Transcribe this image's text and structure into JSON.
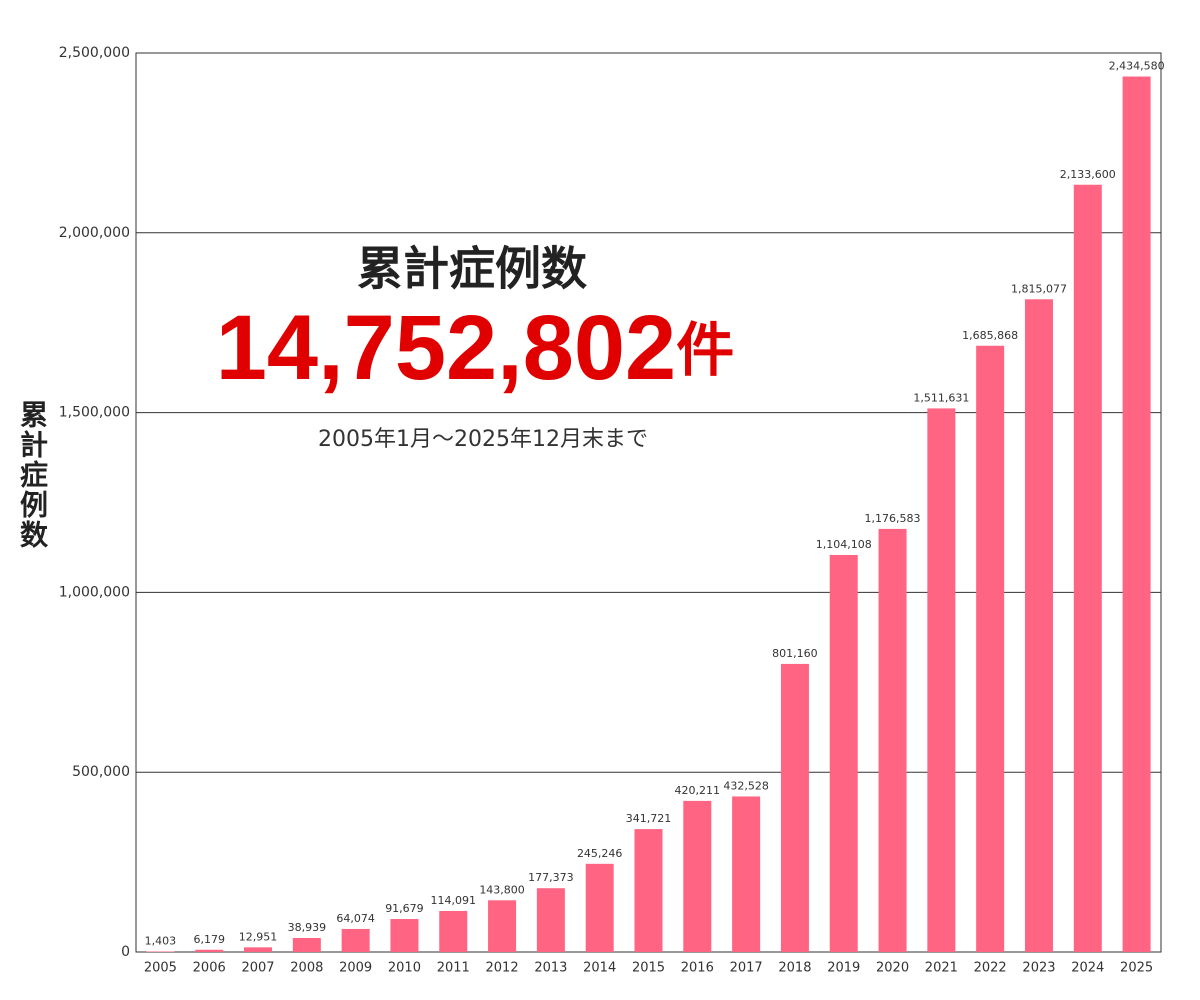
{
  "chart_data": {
    "type": "bar",
    "title": "累計症例数",
    "total": "14,752,802",
    "total_unit": "件",
    "subtitle": "2005年1月～2025年12月末まで",
    "y_label": "累計症例数",
    "categories": [
      "2005",
      "2006",
      "2007",
      "2008",
      "2009",
      "2010",
      "2011",
      "2012",
      "2013",
      "2014",
      "2015",
      "2016",
      "2017",
      "2018",
      "2019",
      "2020",
      "2021",
      "2022",
      "2023",
      "2024",
      "2025"
    ],
    "values": [
      1403,
      6179,
      12951,
      38939,
      64074,
      91679,
      114091,
      143800,
      177373,
      245246,
      341721,
      420211,
      432528,
      801160,
      1104108,
      1176583,
      1511631,
      1685868,
      1815077,
      2133600,
      2434580
    ],
    "value_labels": [
      "1,403",
      "6,179",
      "12,951",
      "38,939",
      "64,074",
      "91,679",
      "114,091",
      "143,800",
      "177,373",
      "245,246",
      "341,721",
      "420,211",
      "432,528",
      "801,160",
      "1,104,108",
      "1,176,583",
      "1,511,631",
      "1,685,868",
      "1,815,077",
      "2,133,600",
      "2,434,580"
    ],
    "color": "#ff6482",
    "ylim": [
      0,
      2500000
    ],
    "yticks": [
      0,
      {
        "value": 500000,
        "label": "500,000"
      },
      {
        "value": 1000000,
        "label": "1,000,000"
      },
      {
        "value": 1500000,
        "label": "1,500,000"
      },
      {
        "value": 2000000,
        "label": "2,000,000"
      },
      {
        "value": 2500000,
        "label": "2,500,000"
      }
    ],
    "grid": true
  }
}
